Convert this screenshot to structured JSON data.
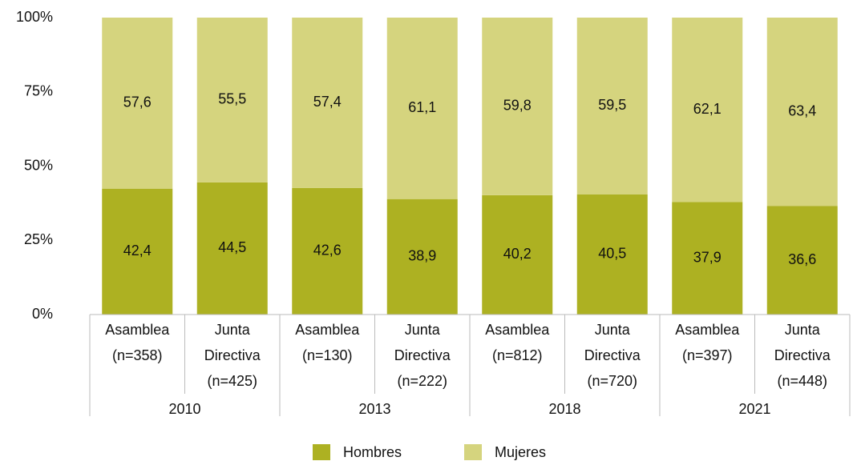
{
  "chart_data": {
    "type": "stacked-bar",
    "categories": [
      [
        "Asamblea",
        "(n=358)"
      ],
      [
        "Junta",
        "Directiva",
        "(n=425)"
      ],
      [
        "Asamblea",
        "(n=130)"
      ],
      [
        "Junta",
        "Directiva",
        "(n=222)"
      ],
      [
        "Asamblea",
        "(n=812)"
      ],
      [
        "Junta",
        "Directiva",
        "(n=720)"
      ],
      [
        "Asamblea",
        "(n=397)"
      ],
      [
        "Junta",
        "Directiva",
        "(n=448)"
      ]
    ],
    "groups": [
      "2010",
      "2013",
      "2018",
      "2021"
    ],
    "series": [
      {
        "name": "Hombres",
        "color": "#adb122",
        "values": [
          42.4,
          44.5,
          42.6,
          38.9,
          40.2,
          40.5,
          37.9,
          36.6
        ],
        "value_labels": [
          "42,4",
          "44,5",
          "42,6",
          "38,9",
          "40,2",
          "40,5",
          "37,9",
          "36,6"
        ]
      },
      {
        "name": "Mujeres",
        "color": "#d5d47e",
        "values": [
          57.6,
          55.5,
          57.4,
          61.1,
          59.8,
          59.5,
          62.1,
          63.4
        ],
        "value_labels": [
          "57,6",
          "55,5",
          "57,4",
          "61,1",
          "59,8",
          "59,5",
          "62,1",
          "63,4"
        ]
      }
    ],
    "ylim": [
      0,
      100
    ],
    "yticks": [
      {
        "value": 0,
        "label": "0%"
      },
      {
        "value": 25,
        "label": "25%"
      },
      {
        "value": 50,
        "label": "50%"
      },
      {
        "value": 75,
        "label": "75%"
      },
      {
        "value": 100,
        "label": "100%"
      }
    ],
    "grid": false,
    "legend": "bottom"
  }
}
